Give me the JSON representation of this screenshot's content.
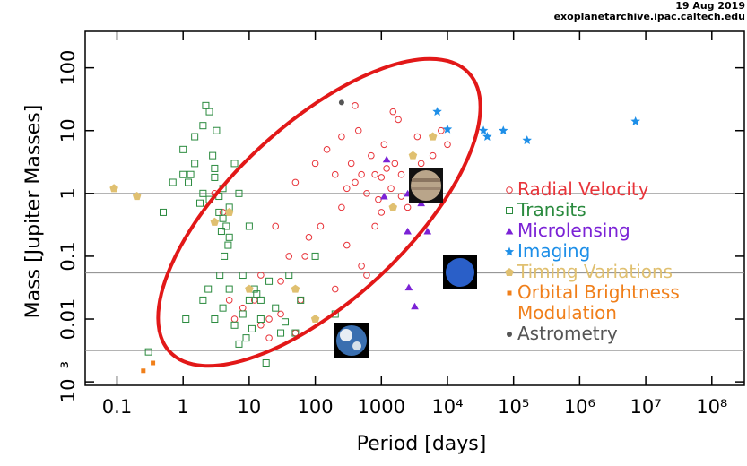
{
  "chart_data": {
    "type": "scatter",
    "annotations": [
      "19 Aug 2019",
      "exoplanetarchive.ipac.caltech.edu"
    ],
    "x_label": "Period [days]",
    "y_label": "Mass [Jupiter Masses]",
    "log_x": true,
    "log_y": true,
    "xlim": [
      0.033,
      310000000
    ],
    "ylim": [
      0.00088,
      380
    ],
    "xticks": [
      0.1,
      1,
      10,
      100,
      1000,
      {
        "value": 10000,
        "label": "10⁴"
      },
      {
        "value": 100000,
        "label": "10⁵"
      },
      {
        "value": 1000000,
        "label": "10⁶"
      },
      {
        "value": 10000000,
        "label": "10⁷"
      },
      {
        "value": 100000000,
        "label": "10⁸"
      }
    ],
    "yticks": [
      {
        "value": 0.001,
        "label": "10⁻³"
      },
      0.01,
      0.1,
      1,
      10,
      100
    ],
    "reference_lines": [
      1,
      0.054,
      0.00315
    ],
    "series": [
      {
        "name": "Radial Velocity",
        "color": "#e8343a",
        "marker": "open-circle",
        "x": [
          3,
          4,
          5,
          6,
          8,
          10,
          12,
          15,
          20,
          25,
          30,
          40,
          50,
          60,
          80,
          100,
          120,
          150,
          200,
          250,
          300,
          350,
          400,
          450,
          500,
          600,
          700,
          800,
          900,
          1000,
          1100,
          1200,
          1400,
          1600,
          1800,
          2000,
          2500,
          3000,
          3500,
          4000,
          5000,
          6000,
          8000,
          10000,
          15,
          20,
          30,
          50,
          70,
          200,
          300,
          500,
          800,
          1000,
          1500,
          2000,
          3000,
          400,
          600,
          250
        ],
        "values": [
          1,
          0.5,
          0.02,
          0.01,
          0.015,
          0.03,
          0.02,
          0.05,
          0.01,
          0.3,
          0.04,
          0.1,
          1.5,
          0.02,
          0.2,
          3,
          0.3,
          5,
          2,
          8,
          1.2,
          3,
          1.5,
          10,
          2,
          1,
          4,
          2,
          0.8,
          1.8,
          6,
          2.5,
          1.2,
          3,
          15,
          2,
          0.6,
          1.5,
          8,
          3,
          2,
          4,
          10,
          6,
          0.008,
          0.005,
          0.012,
          0.006,
          0.1,
          0.03,
          0.15,
          0.07,
          0.3,
          0.5,
          20,
          0.9,
          1.1,
          25,
          0.05,
          0.6
        ]
      },
      {
        "name": "Transits",
        "color": "#2a8a3e",
        "marker": "open-square",
        "x": [
          1,
          1.2,
          1.5,
          2,
          2.5,
          3,
          3.5,
          4,
          4.5,
          5,
          1,
          1.5,
          2,
          2.5,
          3,
          3.5,
          4,
          5,
          6,
          7,
          0.5,
          0.7,
          1.3,
          2.2,
          3.2,
          4.2,
          8,
          10,
          12,
          15,
          2,
          3,
          4,
          5,
          6,
          8,
          10,
          15,
          20,
          30,
          1.8,
          2.8,
          3.8,
          4.8,
          9,
          11,
          25,
          40,
          60,
          100,
          0.3,
          1.1,
          2.4,
          3.6,
          7,
          13,
          18,
          35,
          50,
          200
        ],
        "values": [
          2,
          1.5,
          3,
          1,
          0.8,
          2.5,
          0.5,
          1.2,
          0.3,
          0.6,
          5,
          8,
          12,
          20,
          1.8,
          0.9,
          0.4,
          0.2,
          3,
          1,
          0.5,
          1.5,
          2,
          25,
          10,
          0.1,
          0.05,
          0.3,
          0.03,
          0.02,
          0.02,
          0.01,
          0.015,
          0.03,
          0.008,
          0.012,
          0.02,
          0.01,
          0.04,
          0.006,
          0.7,
          4,
          0.25,
          0.15,
          0.005,
          0.007,
          0.015,
          0.05,
          0.02,
          0.1,
          0.003,
          0.01,
          0.03,
          0.05,
          0.004,
          0.025,
          0.002,
          0.009,
          0.006,
          0.012
        ]
      },
      {
        "name": "Microlensing",
        "color": "#7b22d6",
        "marker": "triangle",
        "x": [
          1200,
          2500,
          4000,
          2500,
          5000,
          2600,
          3200,
          1100
        ],
        "values": [
          3.5,
          1,
          0.7,
          0.25,
          0.25,
          0.032,
          0.016,
          0.9
        ]
      },
      {
        "name": "Imaging",
        "color": "#1e8fe8",
        "marker": "star",
        "x": [
          7000,
          10000,
          35000,
          40000,
          70000,
          160000,
          7000000
        ],
        "values": [
          20,
          10.5,
          10,
          8,
          10,
          7,
          14
        ]
      },
      {
        "name": "Timing Variations",
        "color": "#e0c070",
        "marker": "pentagon",
        "x": [
          0.09,
          0.2,
          3,
          5,
          100,
          1500,
          3000,
          6000,
          10,
          50
        ],
        "values": [
          1.2,
          0.9,
          0.35,
          0.5,
          0.01,
          0.6,
          4,
          8,
          0.03,
          0.03
        ]
      },
      {
        "name": "Orbital Brightness Modulation",
        "color": "#f07f1a",
        "marker": "square",
        "x": [
          0.25,
          0.35
        ],
        "values": [
          0.0015,
          0.002
        ]
      },
      {
        "name": "Astrometry",
        "color": "#555555",
        "marker": "circle",
        "x": [
          250
        ],
        "values": [
          28
        ]
      }
    ]
  }
}
